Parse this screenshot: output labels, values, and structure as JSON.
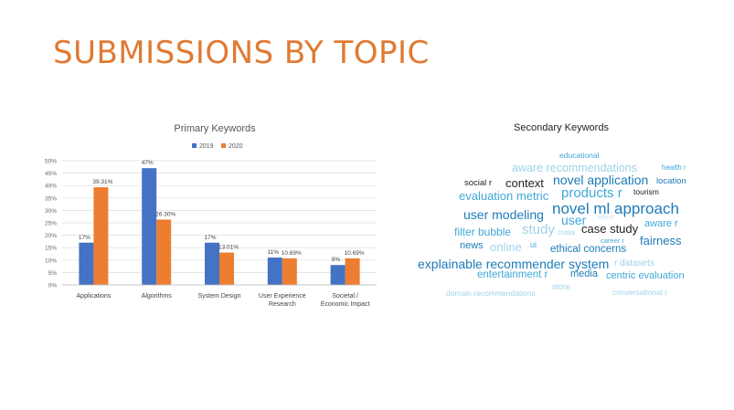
{
  "slide": {
    "title": "SUBMISSIONS BY TOPIC"
  },
  "chart_data": {
    "type": "bar",
    "title": "Primary Keywords",
    "xlabel": "",
    "ylabel": "",
    "categories": [
      "Applications",
      "Algorithms",
      "System Design",
      "User Experience Research",
      "Societal / Economic Impact"
    ],
    "series": [
      {
        "name": "2019",
        "color": "#4472c4",
        "values": [
          17,
          47,
          17,
          11,
          8
        ],
        "labels": [
          "17%",
          "47%",
          "17%",
          "11%",
          "8%"
        ]
      },
      {
        "name": "2020",
        "color": "#ed7d31",
        "values": [
          39.31,
          26.3,
          13.01,
          10.69,
          10.69
        ],
        "labels": [
          "39.31%",
          "26.30%",
          "13.01%",
          "10.69%",
          "10.69%"
        ]
      }
    ],
    "ylim": [
      0,
      50
    ],
    "yticks": [
      "0%",
      "5%",
      "10%",
      "15%",
      "20%",
      "25%",
      "30%",
      "35%",
      "40%",
      "45%",
      "50%"
    ],
    "grid": true,
    "legend_position": "top"
  },
  "wordcloud": {
    "title": "Secondary Keywords",
    "words": [
      {
        "text": "educational",
        "color": "#3fa8d8"
      },
      {
        "text": "aware recommendations",
        "color": "#9fd3ea"
      },
      {
        "text": "health r",
        "color": "#3fa8d8"
      },
      {
        "text": "social r",
        "color": "#222222"
      },
      {
        "text": "context",
        "color": "#222222"
      },
      {
        "text": "novel application",
        "color": "#1d7bb8"
      },
      {
        "text": "location",
        "color": "#1d7bb8"
      },
      {
        "text": "evaluation metric",
        "color": "#3fa8d8"
      },
      {
        "text": "products r",
        "color": "#3fa8d8"
      },
      {
        "text": "tourism",
        "color": "#222222"
      },
      {
        "text": "user modeling",
        "color": "#1d7bb8"
      },
      {
        "text": "novel ml approach",
        "color": "#1d7bb8"
      },
      {
        "text": "user",
        "color": "#3fa8d8"
      },
      {
        "text": "effect",
        "color": "#c8e6f4"
      },
      {
        "text": "aware r",
        "color": "#3fa8d8"
      },
      {
        "text": "filter bubble",
        "color": "#3fa8d8"
      },
      {
        "text": "study",
        "color": "#9fd3ea"
      },
      {
        "text": "cross",
        "color": "#9fd3ea"
      },
      {
        "text": "case study",
        "color": "#222222"
      },
      {
        "text": "news",
        "color": "#1d7bb8"
      },
      {
        "text": "online",
        "color": "#9fd3ea"
      },
      {
        "text": "ui",
        "color": "#3fa8d8"
      },
      {
        "text": "career r",
        "color": "#3fa8d8"
      },
      {
        "text": "fairness",
        "color": "#1d7bb8"
      },
      {
        "text": "ethical concerns",
        "color": "#1d7bb8"
      },
      {
        "text": "explainable recommender system",
        "color": "#1d7bb8"
      },
      {
        "text": "r datasets",
        "color": "#9fd3ea"
      },
      {
        "text": "entertainment r",
        "color": "#3fa8d8"
      },
      {
        "text": "media",
        "color": "#1d7bb8"
      },
      {
        "text": "centric evaluation",
        "color": "#3fa8d8"
      },
      {
        "text": "store",
        "color": "#9fd3ea"
      },
      {
        "text": "domain recommendations",
        "color": "#9fd3ea"
      },
      {
        "text": "conversational r",
        "color": "#9fd3ea"
      }
    ]
  }
}
